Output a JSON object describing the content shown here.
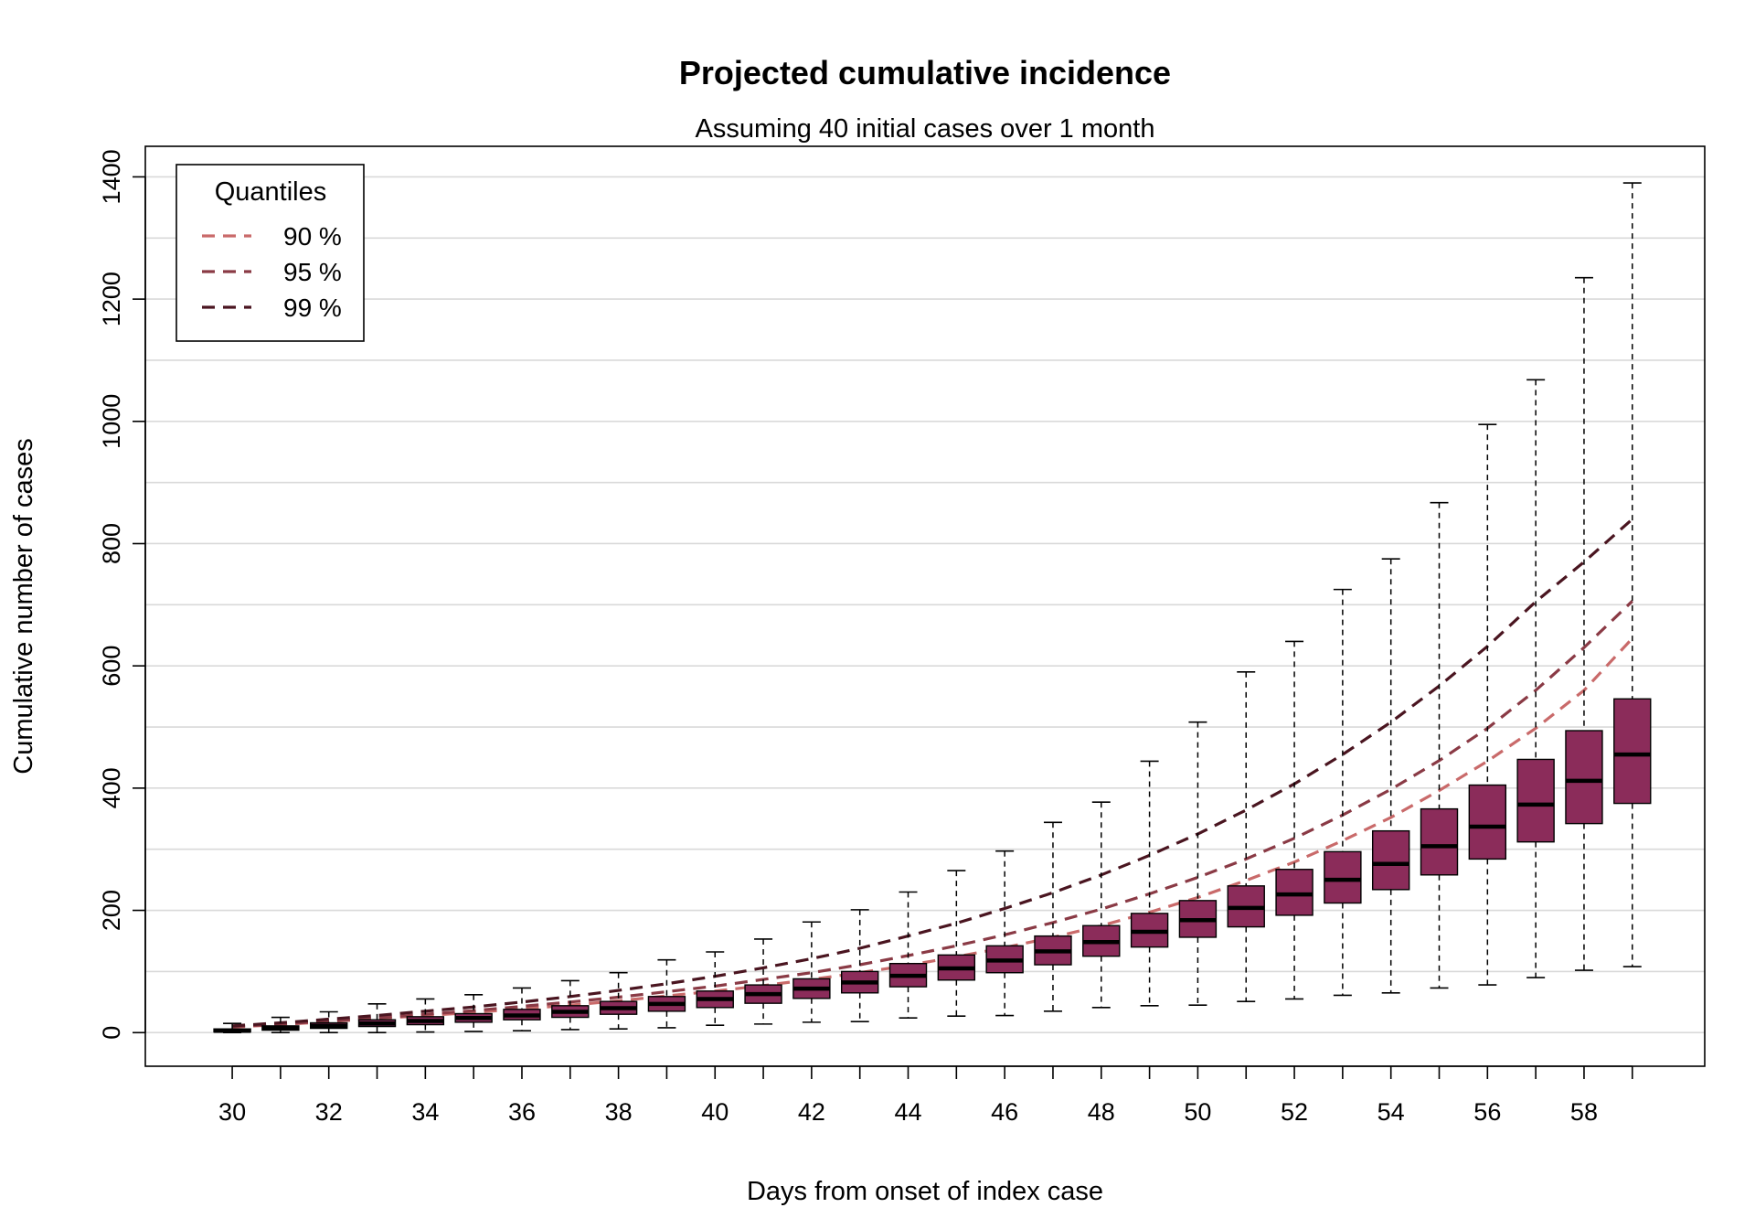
{
  "chart_data": {
    "type": "box",
    "title": "Projected cumulative incidence",
    "subtitle": "Assuming 40 initial cases over 1 month",
    "xlabel": "Days from onset of index case",
    "ylabel": "Cumulative number of cases",
    "xlim": [
      28.2,
      60.5
    ],
    "ylim": [
      -55,
      1450
    ],
    "x_ticks": [
      30,
      32,
      34,
      36,
      38,
      40,
      42,
      44,
      46,
      48,
      50,
      52,
      54,
      56,
      58
    ],
    "y_ticks": [
      0,
      200,
      400,
      600,
      800,
      1000,
      1200,
      1400
    ],
    "grid_y": [
      0,
      100,
      200,
      300,
      400,
      500,
      600,
      700,
      800,
      900,
      1000,
      1100,
      1200,
      1300,
      1400
    ],
    "grid": true,
    "box_color": "#8b2c5a",
    "boxes": [
      {
        "x": 30,
        "min": 0,
        "q1": 1,
        "median": 3,
        "q3": 6,
        "max": 15
      },
      {
        "x": 31,
        "min": 0,
        "q1": 4,
        "median": 7,
        "q3": 11,
        "max": 25
      },
      {
        "x": 32,
        "min": 0,
        "q1": 7,
        "median": 11,
        "q3": 16,
        "max": 34
      },
      {
        "x": 33,
        "min": 0,
        "q1": 10,
        "median": 15,
        "q3": 21,
        "max": 47
      },
      {
        "x": 34,
        "min": 1,
        "q1": 13,
        "median": 19,
        "q3": 26,
        "max": 55
      },
      {
        "x": 35,
        "min": 2,
        "q1": 17,
        "median": 24,
        "q3": 31,
        "max": 62
      },
      {
        "x": 36,
        "min": 3,
        "q1": 21,
        "median": 28,
        "q3": 38,
        "max": 73
      },
      {
        "x": 37,
        "min": 5,
        "q1": 25,
        "median": 34,
        "q3": 44,
        "max": 85
      },
      {
        "x": 38,
        "min": 6,
        "q1": 30,
        "median": 40,
        "q3": 51,
        "max": 98
      },
      {
        "x": 39,
        "min": 8,
        "q1": 35,
        "median": 47,
        "q3": 59,
        "max": 119
      },
      {
        "x": 40,
        "min": 12,
        "q1": 41,
        "median": 55,
        "q3": 68,
        "max": 132
      },
      {
        "x": 41,
        "min": 14,
        "q1": 48,
        "median": 63,
        "q3": 78,
        "max": 153
      },
      {
        "x": 42,
        "min": 17,
        "q1": 56,
        "median": 72,
        "q3": 88,
        "max": 181
      },
      {
        "x": 43,
        "min": 18,
        "q1": 65,
        "median": 82,
        "q3": 100,
        "max": 201
      },
      {
        "x": 44,
        "min": 24,
        "q1": 75,
        "median": 93,
        "q3": 113,
        "max": 230
      },
      {
        "x": 45,
        "min": 27,
        "q1": 86,
        "median": 105,
        "q3": 127,
        "max": 265
      },
      {
        "x": 46,
        "min": 28,
        "q1": 98,
        "median": 118,
        "q3": 142,
        "max": 297
      },
      {
        "x": 47,
        "min": 35,
        "q1": 111,
        "median": 133,
        "q3": 158,
        "max": 344
      },
      {
        "x": 48,
        "min": 41,
        "q1": 125,
        "median": 148,
        "q3": 175,
        "max": 377
      },
      {
        "x": 49,
        "min": 44,
        "q1": 140,
        "median": 165,
        "q3": 195,
        "max": 444
      },
      {
        "x": 50,
        "min": 45,
        "q1": 156,
        "median": 184,
        "q3": 216,
        "max": 508
      },
      {
        "x": 51,
        "min": 51,
        "q1": 173,
        "median": 204,
        "q3": 240,
        "max": 590
      },
      {
        "x": 52,
        "min": 55,
        "q1": 192,
        "median": 226,
        "q3": 267,
        "max": 640
      },
      {
        "x": 53,
        "min": 61,
        "q1": 212,
        "median": 250,
        "q3": 296,
        "max": 725
      },
      {
        "x": 54,
        "min": 65,
        "q1": 234,
        "median": 276,
        "q3": 330,
        "max": 775
      },
      {
        "x": 55,
        "min": 73,
        "q1": 258,
        "median": 305,
        "q3": 366,
        "max": 867
      },
      {
        "x": 56,
        "min": 78,
        "q1": 284,
        "median": 337,
        "q3": 405,
        "max": 995
      },
      {
        "x": 57,
        "min": 90,
        "q1": 312,
        "median": 373,
        "q3": 447,
        "max": 1068
      },
      {
        "x": 58,
        "min": 102,
        "q1": 342,
        "median": 412,
        "q3": 494,
        "max": 1235
      },
      {
        "x": 59,
        "min": 108,
        "q1": 375,
        "median": 455,
        "q3": 546,
        "max": 1390
      }
    ],
    "legend": {
      "title": "Quantiles",
      "position": "top-left",
      "entries": [
        {
          "label": "90 %",
          "color": "#c96a6a"
        },
        {
          "label": "95 %",
          "color": "#8a3a45"
        },
        {
          "label": "99 %",
          "color": "#4a1520"
        }
      ]
    },
    "series": [
      {
        "name": "90 %",
        "color": "#c96a6a",
        "x": [
          30,
          31,
          32,
          33,
          34,
          35,
          36,
          37,
          38,
          39,
          40,
          41,
          42,
          43,
          44,
          45,
          46,
          47,
          48,
          49,
          50,
          51,
          52,
          53,
          54,
          55,
          56,
          57,
          58,
          59
        ],
        "values": [
          9,
          13,
          18,
          23,
          28,
          33,
          39,
          45,
          52,
          60,
          68,
          77,
          87,
          98,
          110,
          124,
          139,
          156,
          175,
          197,
          221,
          249,
          279,
          314,
          352,
          396,
          444,
          498,
          560,
          645
        ]
      },
      {
        "name": "95 %",
        "color": "#8a3a45",
        "x": [
          30,
          31,
          32,
          33,
          34,
          35,
          36,
          37,
          38,
          39,
          40,
          41,
          42,
          43,
          44,
          45,
          46,
          47,
          48,
          49,
          50,
          51,
          52,
          53,
          54,
          55,
          56,
          57,
          58,
          59
        ],
        "values": [
          10,
          14,
          19,
          24,
          30,
          36,
          43,
          50,
          58,
          67,
          76,
          87,
          98,
          111,
          126,
          142,
          160,
          180,
          202,
          227,
          254,
          284,
          318,
          356,
          398,
          445,
          498,
          560,
          630,
          706
        ]
      },
      {
        "name": "99 %",
        "color": "#4a1520",
        "x": [
          30,
          31,
          32,
          33,
          34,
          35,
          36,
          37,
          38,
          39,
          40,
          41,
          42,
          43,
          44,
          45,
          46,
          47,
          48,
          49,
          50,
          51,
          52,
          53,
          54,
          55,
          56,
          57,
          58,
          59
        ],
        "values": [
          11,
          16,
          22,
          28,
          35,
          42,
          50,
          59,
          69,
          80,
          92,
          106,
          121,
          138,
          158,
          179,
          203,
          229,
          258,
          290,
          325,
          364,
          407,
          455,
          508,
          567,
          632,
          705,
          770,
          840
        ]
      }
    ]
  }
}
